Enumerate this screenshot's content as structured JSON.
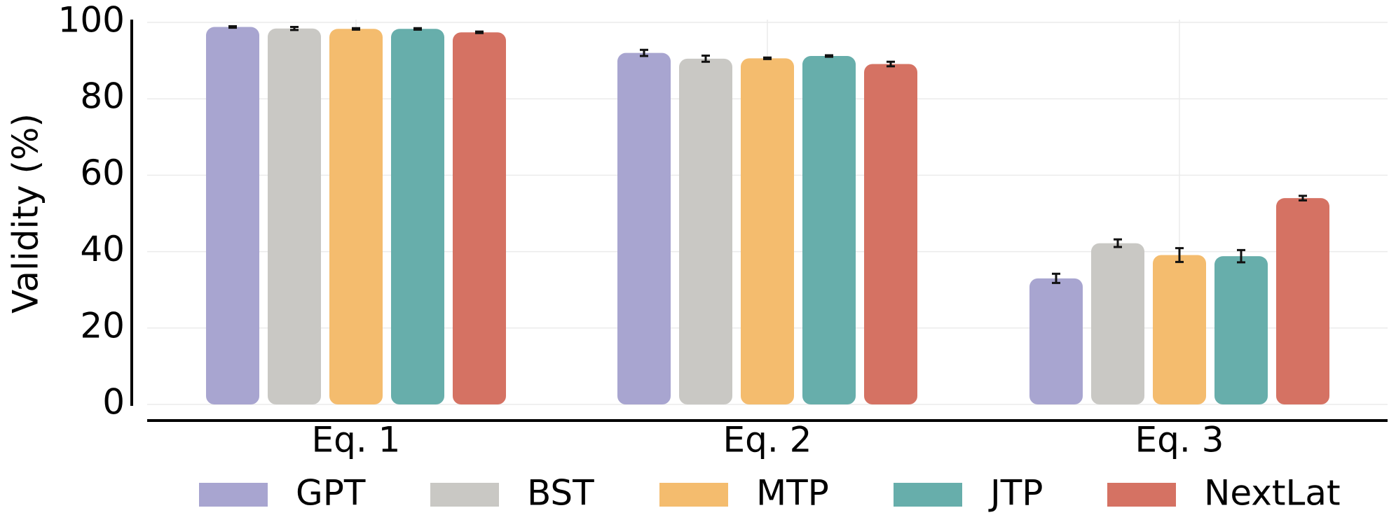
{
  "chart_data": {
    "type": "bar",
    "y_label": "Validity (%)",
    "categories": [
      "Eq. 1",
      "Eq. 2",
      "Eq. 3"
    ],
    "series": [
      {
        "name": "GPT",
        "color": "#a8a5d0",
        "values": [
          98.8,
          92.0,
          33.0
        ],
        "errors": [
          0.2,
          0.8,
          1.2
        ]
      },
      {
        "name": "BST",
        "color": "#c9c8c4",
        "values": [
          98.4,
          90.5,
          42.2
        ],
        "errors": [
          0.4,
          0.8,
          1.0
        ]
      },
      {
        "name": "MTP",
        "color": "#f4bc6e",
        "values": [
          98.3,
          90.6,
          39.1
        ],
        "errors": [
          0.2,
          0.2,
          1.8
        ]
      },
      {
        "name": "JTP",
        "color": "#67aeab",
        "values": [
          98.3,
          91.2,
          38.8
        ],
        "errors": [
          0.2,
          0.2,
          1.6
        ]
      },
      {
        "name": "NextLat",
        "color": "#d57263",
        "values": [
          97.4,
          89.1,
          54.0
        ],
        "errors": [
          0.2,
          0.6,
          0.6
        ]
      }
    ],
    "ylim": [
      0,
      100
    ],
    "yticks": [
      0,
      20,
      40,
      60,
      80,
      100
    ],
    "grid": true
  }
}
